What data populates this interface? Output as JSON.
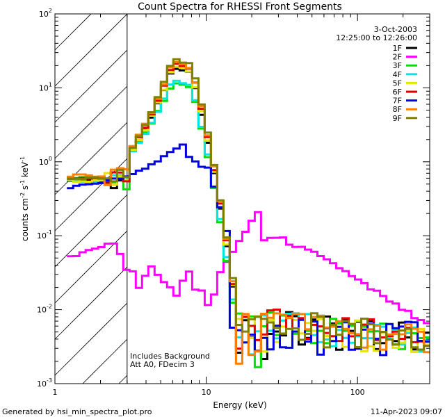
{
  "chart_data": {
    "type": "line",
    "title": "Count Spectra for RHESSI Front Segments",
    "xlabel": "Energy (keV)",
    "ylabel_base": "counts cm",
    "ylabel_sup1": "-2",
    "ylabel_mid": " s",
    "ylabel_sup2": "-1",
    "ylabel_end": " keV",
    "ylabel_sup3": "-1",
    "x_scale": "log",
    "y_scale": "log",
    "xlim": [
      1,
      300
    ],
    "ylim": [
      0.001,
      100
    ],
    "x_tick_labels": [
      {
        "v": 1,
        "label": "1"
      },
      {
        "v": 10,
        "label": "10"
      },
      {
        "v": 100,
        "label": "100"
      }
    ],
    "y_tick_labels": [
      {
        "v": 100,
        "base": "10",
        "exp": "2"
      },
      {
        "v": 10,
        "base": "10",
        "exp": "1"
      },
      {
        "v": 1,
        "base": "10",
        "exp": "0"
      },
      {
        "v": 0.1,
        "base": "10",
        "exp": "-1"
      },
      {
        "v": 0.01,
        "base": "10",
        "exp": "-2"
      },
      {
        "v": 0.001,
        "base": "10",
        "exp": "-3"
      }
    ],
    "hatched_region": [
      1,
      3
    ],
    "date": "3-Oct-2003",
    "time_range": "12:25:00 to 12:26:00",
    "annotations": [
      "Includes Background",
      "Att A0, FDecim 3"
    ],
    "series": [
      {
        "name": "1F",
        "color": "#000000",
        "peak": 19,
        "low": 0.55
      },
      {
        "name": "2F",
        "color": "#ff00ff",
        "special": "2F"
      },
      {
        "name": "3F",
        "color": "#00e000",
        "peak": 12,
        "low": 0.6
      },
      {
        "name": "4F",
        "color": "#00e5e5",
        "peak": 13,
        "low": 0.55
      },
      {
        "name": "5F",
        "color": "#e5e500",
        "peak": 20,
        "low": 0.55
      },
      {
        "name": "6F",
        "color": "#e50000",
        "peak": 22,
        "low": 0.6
      },
      {
        "name": "7F",
        "color": "#0000e0",
        "special": "7F"
      },
      {
        "name": "8F",
        "color": "#ff8000",
        "peak": 23,
        "low": 0.65
      },
      {
        "name": "9F",
        "color": "#808000",
        "peak": 25,
        "low": 0.6
      }
    ]
  },
  "footer": {
    "generated_by": "Generated by hsi_min_spectra_plot.pro",
    "timestamp": "11-Apr-2023 09:07"
  }
}
